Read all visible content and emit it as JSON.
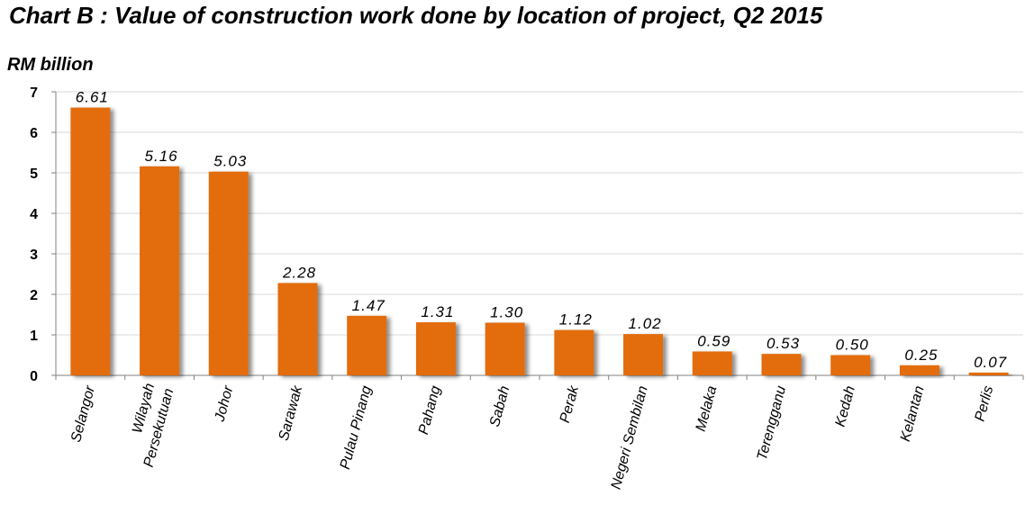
{
  "chart_data": {
    "type": "bar",
    "title": "Chart B : Value of construction work done by location of project, Q2 2015",
    "ylabel": "RM billion",
    "xlabel": "",
    "ylim": [
      0,
      7
    ],
    "yticks": [
      0,
      1,
      2,
      3,
      4,
      5,
      6,
      7
    ],
    "grid": true,
    "legend": "none",
    "bar_color": "#e36c0a",
    "categories": [
      [
        "Selangor"
      ],
      [
        "Wilayah",
        "Persekutuan"
      ],
      [
        "Johor"
      ],
      [
        "Sarawak"
      ],
      [
        "Pulau Pinang"
      ],
      [
        "Pahang"
      ],
      [
        "Sabah"
      ],
      [
        "Perak"
      ],
      [
        "Negeri Sembilan"
      ],
      [
        "Melaka"
      ],
      [
        "Terengganu"
      ],
      [
        "Kedah"
      ],
      [
        "Kelantan"
      ],
      [
        "Perlis"
      ]
    ],
    "values": [
      6.61,
      5.16,
      5.03,
      2.28,
      1.47,
      1.31,
      1.3,
      1.12,
      1.02,
      0.59,
      0.53,
      0.5,
      0.25,
      0.07
    ],
    "data_labels": [
      "6.61",
      "5.16",
      "5.03",
      "2.28",
      "1.47",
      "1.31",
      "1.30",
      "1.12",
      "1.02",
      "0.59",
      "0.53",
      "0.50",
      "0.25",
      "0.07"
    ]
  }
}
